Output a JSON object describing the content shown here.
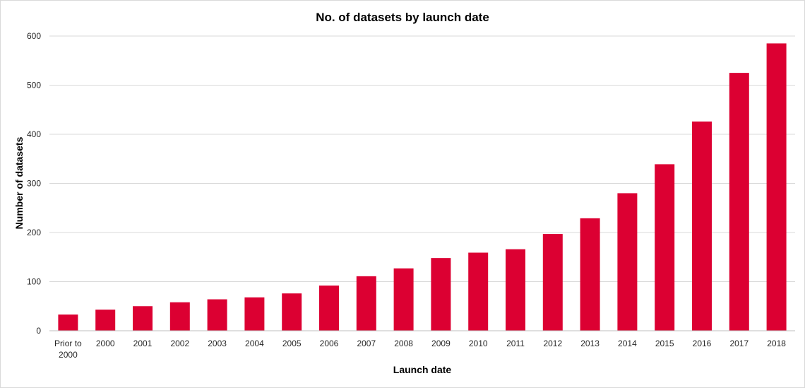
{
  "chart_data": {
    "type": "bar",
    "title": "No. of datasets by launch date",
    "xlabel": "Launch date",
    "ylabel": "Number of datasets",
    "categories": [
      [
        "Prior to",
        "2000"
      ],
      [
        "2000"
      ],
      [
        "2001"
      ],
      [
        "2002"
      ],
      [
        "2003"
      ],
      [
        "2004"
      ],
      [
        "2005"
      ],
      [
        "2006"
      ],
      [
        "2007"
      ],
      [
        "2008"
      ],
      [
        "2009"
      ],
      [
        "2010"
      ],
      [
        "2011"
      ],
      [
        "2012"
      ],
      [
        "2013"
      ],
      [
        "2014"
      ],
      [
        "2015"
      ],
      [
        "2016"
      ],
      [
        "2017"
      ],
      [
        "2018"
      ]
    ],
    "values": [
      33,
      43,
      50,
      58,
      64,
      68,
      76,
      92,
      111,
      127,
      148,
      159,
      166,
      197,
      229,
      280,
      339,
      426,
      525,
      585
    ],
    "ylim": [
      0,
      600
    ],
    "yticks": [
      0,
      100,
      200,
      300,
      400,
      500,
      600
    ],
    "grid": true,
    "bar_color": "#dc0032",
    "legend": "none"
  }
}
